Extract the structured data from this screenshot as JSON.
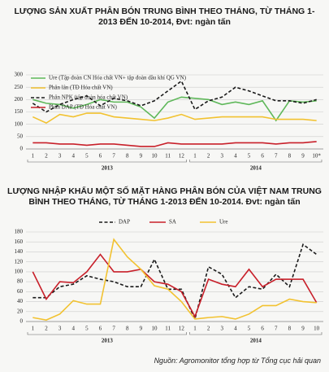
{
  "chart_data": [
    {
      "type": "line",
      "title": "LƯỢNG SẢN XUẤT PHÂN BÓN TRUNG BÌNH THEO THÁNG, TỪ THÁNG 1-2013 ĐẾN 10-2014, Đvt: ngàn tấn",
      "categories": [
        "1",
        "2",
        "3",
        "4",
        "5",
        "6",
        "7",
        "8",
        "9",
        "10",
        "11",
        "12",
        "1",
        "2",
        "3",
        "4",
        "5",
        "6",
        "7",
        "8",
        "9",
        "10*"
      ],
      "groups": [
        "2013",
        "2014"
      ],
      "ylim": [
        0,
        300
      ],
      "yticks": [
        0,
        50,
        100,
        150,
        200,
        250,
        300
      ],
      "grid": true,
      "legend": "upper left",
      "series": [
        {
          "name": "Ure (Tập đoàn CN Hóa chất VN+ tập đoàn dầu khí QG VN)",
          "color": "#5fb85a",
          "style": "solid",
          "values": [
            200,
            185,
            180,
            165,
            180,
            200,
            190,
            190,
            170,
            125,
            190,
            210,
            205,
            200,
            180,
            190,
            180,
            195,
            115,
            195,
            190,
            195
          ]
        },
        {
          "name": "Phân lân (TĐ Hóa chất VN)",
          "color": "#f2c230",
          "style": "solid",
          "values": [
            130,
            105,
            140,
            130,
            145,
            145,
            130,
            125,
            120,
            115,
            125,
            140,
            120,
            125,
            130,
            130,
            130,
            130,
            120,
            120,
            120,
            115
          ]
        },
        {
          "name": "Phân NPK (tập đoàn hóa chất VN)",
          "color": "#1a1a1a",
          "style": "dashed",
          "values": [
            185,
            150,
            180,
            200,
            215,
            175,
            205,
            195,
            175,
            195,
            235,
            275,
            160,
            195,
            210,
            250,
            235,
            215,
            195,
            195,
            185,
            200
          ]
        },
        {
          "name": "Phân DAP (TĐ Hóa chất VN)",
          "color": "#c8202a",
          "style": "solid",
          "values": [
            25,
            25,
            20,
            20,
            15,
            20,
            20,
            15,
            10,
            10,
            25,
            20,
            20,
            20,
            20,
            25,
            25,
            25,
            20,
            25,
            25,
            30
          ]
        }
      ]
    },
    {
      "type": "line",
      "title": "LƯỢNG NHẬP KHẨU MỘT SỐ MẶT HÀNG PHÂN BÓN CỦA VIỆT NAM TRUNG BÌNH THEO THÁNG, TỪ THÁNG 1-2013 ĐẾN 10-2014. Đvt: ngàn tấn",
      "categories": [
        "1",
        "2",
        "3",
        "4",
        "5",
        "6",
        "7",
        "8",
        "9",
        "10",
        "11",
        "12",
        "1",
        "2",
        "3",
        "4",
        "5",
        "6",
        "7",
        "8",
        "9",
        "10"
      ],
      "groups": [
        "2013",
        "2014"
      ],
      "ylim": [
        0,
        180
      ],
      "yticks": [
        0,
        20,
        40,
        60,
        80,
        100,
        120,
        140,
        160,
        180
      ],
      "grid": true,
      "legend": "top",
      "series": [
        {
          "name": "DAP",
          "color": "#1a1a1a",
          "style": "dashed",
          "values": [
            48,
            48,
            70,
            75,
            92,
            85,
            80,
            70,
            70,
            125,
            65,
            65,
            5,
            110,
            95,
            48,
            70,
            65,
            95,
            70,
            155,
            135
          ]
        },
        {
          "name": "SA",
          "color": "#c8202a",
          "style": "solid",
          "values": [
            100,
            45,
            80,
            78,
            100,
            135,
            100,
            100,
            105,
            80,
            75,
            60,
            10,
            85,
            75,
            70,
            105,
            70,
            85,
            85,
            85,
            38
          ]
        },
        {
          "name": "Ure",
          "color": "#f2c230",
          "style": "solid",
          "values": [
            8,
            3,
            15,
            42,
            35,
            35,
            165,
            130,
            105,
            72,
            65,
            40,
            5,
            8,
            10,
            5,
            15,
            32,
            32,
            45,
            40,
            38
          ]
        }
      ]
    }
  ],
  "footer": "Nguồn: Agromonitor tổng hợp từ Tổng cục hải quan"
}
